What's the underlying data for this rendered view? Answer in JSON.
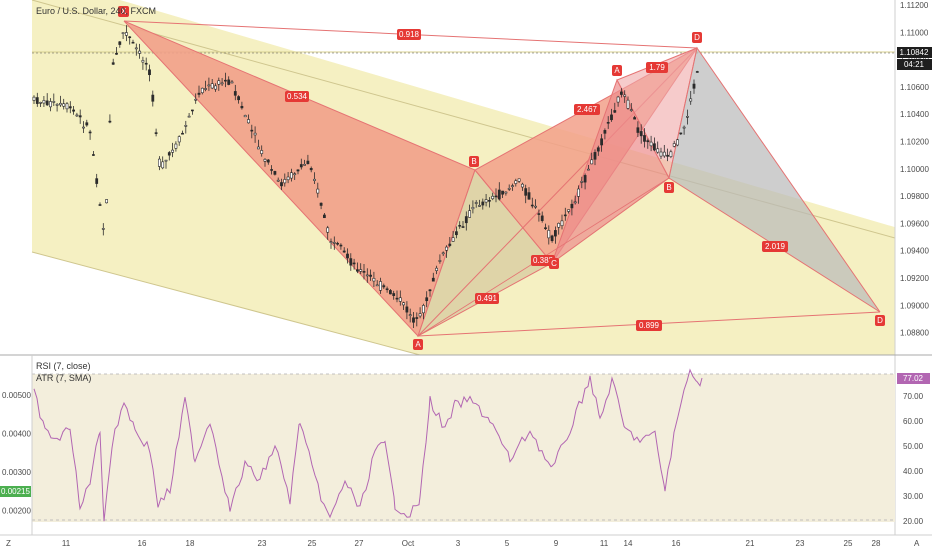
{
  "header": {
    "symbol_title": "Euro / U.S. Dollar, 240, FXCM"
  },
  "main_chart": {
    "price_scale": [
      "1.11200",
      "1.11000",
      "1.10800",
      "1.10600",
      "1.10400",
      "1.10200",
      "1.10000",
      "1.09800",
      "1.09600",
      "1.09400",
      "1.09200",
      "1.09000",
      "1.08800"
    ],
    "current_price": "1.10842",
    "countdown": "04:21",
    "ratios": {
      "xd": "0.918",
      "xb": "0.534",
      "ab_right": "2.467",
      "ab_small": "1.79",
      "ac": "0.491",
      "bc": "0.388",
      "bd": "2.019",
      "ad": "0.899"
    },
    "points": {
      "x": "X",
      "a": "A",
      "b": "B",
      "c": "C",
      "d": "D",
      "a2": "A",
      "b2": "B",
      "c2": "C",
      "d2": "D"
    },
    "colors": {
      "channel_fill": "#f5f0c2",
      "pattern_red": "#e57373",
      "pattern_fill": "#f2a08a",
      "grey_fill": "#b9b9b9",
      "candle": "#2b2b2b",
      "label_red": "#e53935"
    }
  },
  "lower_pane": {
    "rsi_title": "RSI (7, close)",
    "atr_title": "ATR (7, SMA)",
    "left_scale": [
      "0.00500",
      "0.00400",
      "0.00300",
      "0.00200"
    ],
    "left_highlight": "0.00215",
    "right_scale": [
      "80.00",
      "70.00",
      "60.00",
      "50.00",
      "40.00",
      "30.00",
      "20.00"
    ],
    "right_highlight": "77.02",
    "rsi_color": "#b266b2"
  },
  "time_axis": {
    "labels": [
      "11",
      "16",
      "18",
      "23",
      "25",
      "27",
      "Oct",
      "3",
      "5",
      "9",
      "11",
      "14",
      "16",
      "21",
      "23",
      "25",
      "28"
    ],
    "corner_left": "Z",
    "corner_right": "A"
  }
}
